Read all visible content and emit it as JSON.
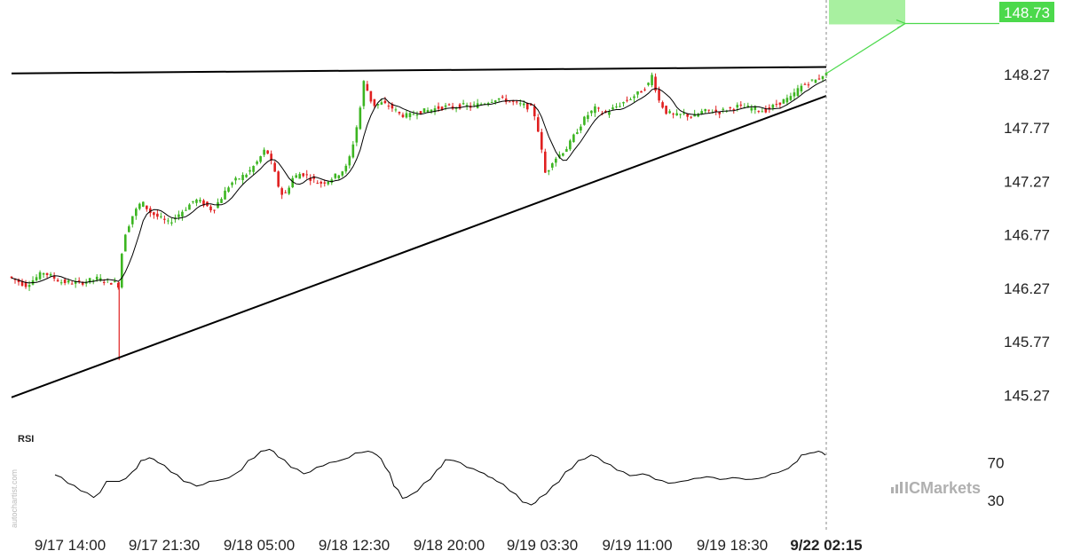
{
  "chart_data": {
    "type": "candlestick",
    "symbol_note": "",
    "price_axis": {
      "ticks": [
        "148.27",
        "147.77",
        "147.27",
        "146.77",
        "146.27",
        "145.77",
        "145.27"
      ],
      "tick_values": [
        148.27,
        147.77,
        147.27,
        146.77,
        146.27,
        145.77,
        145.27
      ],
      "ylim": [
        145.0,
        148.9
      ]
    },
    "time_axis": {
      "ticks": [
        "9/17 14:00",
        "9/17 21:30",
        "9/18 05:00",
        "9/18 12:30",
        "9/18 20:00",
        "9/19 03:30",
        "9/19 11:00",
        "9/19 18:30",
        "9/22 02:15"
      ],
      "highlighted_tick": "9/22 02:15"
    },
    "last_price": "148.73",
    "projection_target": 148.73,
    "pattern": {
      "name": "ascending triangle",
      "resistance": {
        "start": {
          "time": "9/17 14:00",
          "price": 148.28
        },
        "end": {
          "time": "9/22 02:15",
          "price": 148.34
        }
      },
      "support": {
        "start": {
          "time": "9/17 14:00",
          "price": 145.25
        },
        "end": {
          "time": "9/22 02:15",
          "price": 148.07
        }
      }
    },
    "price_path": [
      [
        0,
        146.38
      ],
      [
        20,
        146.3
      ],
      [
        40,
        146.42
      ],
      [
        60,
        146.33
      ],
      [
        80,
        146.32
      ],
      [
        100,
        146.36
      ],
      [
        120,
        146.32
      ],
      [
        121,
        145.68
      ],
      [
        124,
        146.3
      ],
      [
        130,
        146.75
      ],
      [
        140,
        146.95
      ],
      [
        150,
        147.08
      ],
      [
        160,
        146.98
      ],
      [
        170,
        146.93
      ],
      [
        180,
        146.88
      ],
      [
        190,
        146.95
      ],
      [
        200,
        147.02
      ],
      [
        210,
        147.1
      ],
      [
        220,
        147.06
      ],
      [
        230,
        147.0
      ],
      [
        240,
        147.12
      ],
      [
        250,
        147.25
      ],
      [
        260,
        147.3
      ],
      [
        270,
        147.35
      ],
      [
        280,
        147.45
      ],
      [
        290,
        147.58
      ],
      [
        298,
        147.4
      ],
      [
        305,
        147.2
      ],
      [
        310,
        147.12
      ],
      [
        320,
        147.3
      ],
      [
        330,
        147.35
      ],
      [
        340,
        147.3
      ],
      [
        350,
        147.25
      ],
      [
        360,
        147.28
      ],
      [
        370,
        147.33
      ],
      [
        380,
        147.4
      ],
      [
        385,
        147.52
      ],
      [
        390,
        147.7
      ],
      [
        395,
        147.9
      ],
      [
        400,
        148.2
      ],
      [
        405,
        148.1
      ],
      [
        410,
        147.98
      ],
      [
        420,
        148.0
      ],
      [
        430,
        147.97
      ],
      [
        440,
        147.9
      ],
      [
        450,
        147.88
      ],
      [
        460,
        147.92
      ],
      [
        470,
        147.93
      ],
      [
        480,
        147.95
      ],
      [
        490,
        147.97
      ],
      [
        500,
        147.96
      ],
      [
        510,
        147.98
      ],
      [
        520,
        147.97
      ],
      [
        530,
        147.99
      ],
      [
        540,
        148.02
      ],
      [
        550,
        148.05
      ],
      [
        560,
        148.03
      ],
      [
        570,
        148.0
      ],
      [
        580,
        147.98
      ],
      [
        590,
        147.95
      ],
      [
        595,
        147.8
      ],
      [
        600,
        147.55
      ],
      [
        605,
        147.3
      ],
      [
        610,
        147.45
      ],
      [
        620,
        147.52
      ],
      [
        630,
        147.6
      ],
      [
        640,
        147.75
      ],
      [
        650,
        147.88
      ],
      [
        660,
        147.95
      ],
      [
        670,
        147.9
      ],
      [
        680,
        147.95
      ],
      [
        690,
        148.0
      ],
      [
        700,
        148.05
      ],
      [
        710,
        148.1
      ],
      [
        720,
        148.18
      ],
      [
        725,
        148.28
      ],
      [
        730,
        148.05
      ],
      [
        740,
        147.92
      ],
      [
        750,
        147.88
      ],
      [
        760,
        147.9
      ],
      [
        770,
        147.87
      ],
      [
        780,
        147.92
      ],
      [
        790,
        147.93
      ],
      [
        800,
        147.92
      ],
      [
        810,
        147.95
      ],
      [
        820,
        147.97
      ],
      [
        830,
        147.96
      ],
      [
        840,
        147.95
      ],
      [
        850,
        147.93
      ],
      [
        860,
        147.97
      ],
      [
        870,
        148.02
      ],
      [
        880,
        148.05
      ],
      [
        890,
        148.15
      ],
      [
        900,
        148.2
      ],
      [
        910,
        148.22
      ],
      [
        916,
        148.27
      ]
    ],
    "rsi": {
      "label": "RSI",
      "ticks": [
        "70",
        "30"
      ],
      "tick_values": [
        70,
        30
      ],
      "ylim": [
        10,
        90
      ],
      "values": [
        [
          0,
          57
        ],
        [
          15,
          48
        ],
        [
          30,
          40
        ],
        [
          45,
          33
        ],
        [
          60,
          50
        ],
        [
          75,
          50
        ],
        [
          90,
          60
        ],
        [
          100,
          72
        ],
        [
          110,
          75
        ],
        [
          120,
          70
        ],
        [
          135,
          60
        ],
        [
          150,
          50
        ],
        [
          165,
          45
        ],
        [
          180,
          50
        ],
        [
          195,
          52
        ],
        [
          210,
          58
        ],
        [
          225,
          72
        ],
        [
          240,
          82
        ],
        [
          250,
          84
        ],
        [
          260,
          76
        ],
        [
          275,
          65
        ],
        [
          290,
          58
        ],
        [
          305,
          65
        ],
        [
          320,
          70
        ],
        [
          335,
          73
        ],
        [
          350,
          80
        ],
        [
          365,
          82
        ],
        [
          375,
          78
        ],
        [
          385,
          65
        ],
        [
          395,
          45
        ],
        [
          405,
          32
        ],
        [
          415,
          36
        ],
        [
          430,
          48
        ],
        [
          445,
          62
        ],
        [
          455,
          73
        ],
        [
          465,
          72
        ],
        [
          480,
          65
        ],
        [
          495,
          60
        ],
        [
          505,
          55
        ],
        [
          515,
          50
        ],
        [
          530,
          40
        ],
        [
          545,
          28
        ],
        [
          555,
          25
        ],
        [
          565,
          33
        ],
        [
          580,
          45
        ],
        [
          595,
          60
        ],
        [
          610,
          72
        ],
        [
          625,
          78
        ],
        [
          640,
          70
        ],
        [
          655,
          62
        ],
        [
          670,
          56
        ],
        [
          685,
          58
        ],
        [
          700,
          52
        ],
        [
          715,
          48
        ],
        [
          730,
          50
        ],
        [
          745,
          53
        ],
        [
          760,
          55
        ],
        [
          775,
          52
        ],
        [
          790,
          54
        ],
        [
          805,
          52
        ],
        [
          820,
          53
        ],
        [
          835,
          58
        ],
        [
          850,
          62
        ],
        [
          860,
          68
        ],
        [
          870,
          78
        ],
        [
          880,
          80
        ],
        [
          890,
          82
        ],
        [
          898,
          78
        ]
      ]
    }
  },
  "labels": {
    "rsi_title": "RSI",
    "watermark": "autochartist.com",
    "brand": "ICMarkets"
  },
  "colors": {
    "bull": "#3cb521",
    "bear": "#e02020",
    "projection": "#4cd94c",
    "projection_box": "#a8f0a0",
    "trendline": "#000000",
    "ma": "#000000"
  }
}
